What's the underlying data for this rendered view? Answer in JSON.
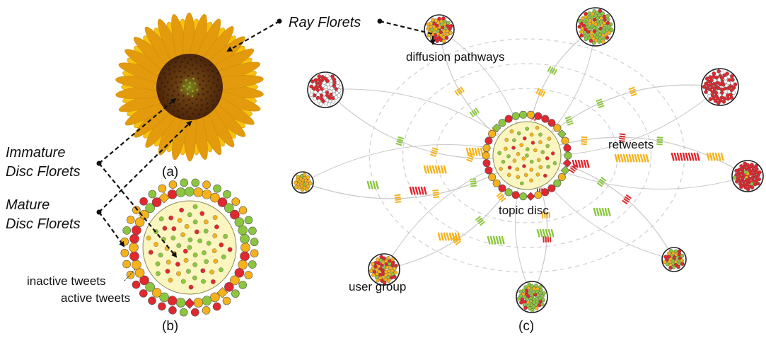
{
  "labels": {
    "ray_florets": "Ray Florets",
    "immature_line1": "Immature",
    "immature_line2": "Disc Florets",
    "mature_line1": "Mature",
    "mature_line2": "Disc Florets",
    "inactive_tweets": "inactive tweets",
    "active_tweets": "active tweets",
    "diffusion_pathways": "diffusion pathways",
    "retweets": "retweets",
    "topic_disc": "topic disc",
    "user_group": "user group"
  },
  "panels": {
    "a": "(a)",
    "b": "(b)",
    "c": "(c)"
  },
  "colors": {
    "red": "#e0282e",
    "orange": "#f5b21a",
    "green": "#8cc63f",
    "disc_fill": "#fbf6c0",
    "disc_stroke": "#8a8a55",
    "petal": "#f7c20f",
    "petal_dark": "#e39a0c",
    "flower_center": "#6b3a12",
    "arrow": "#111111",
    "pathway": "#c8c8c8",
    "ring": "#cfcfcf"
  }
}
